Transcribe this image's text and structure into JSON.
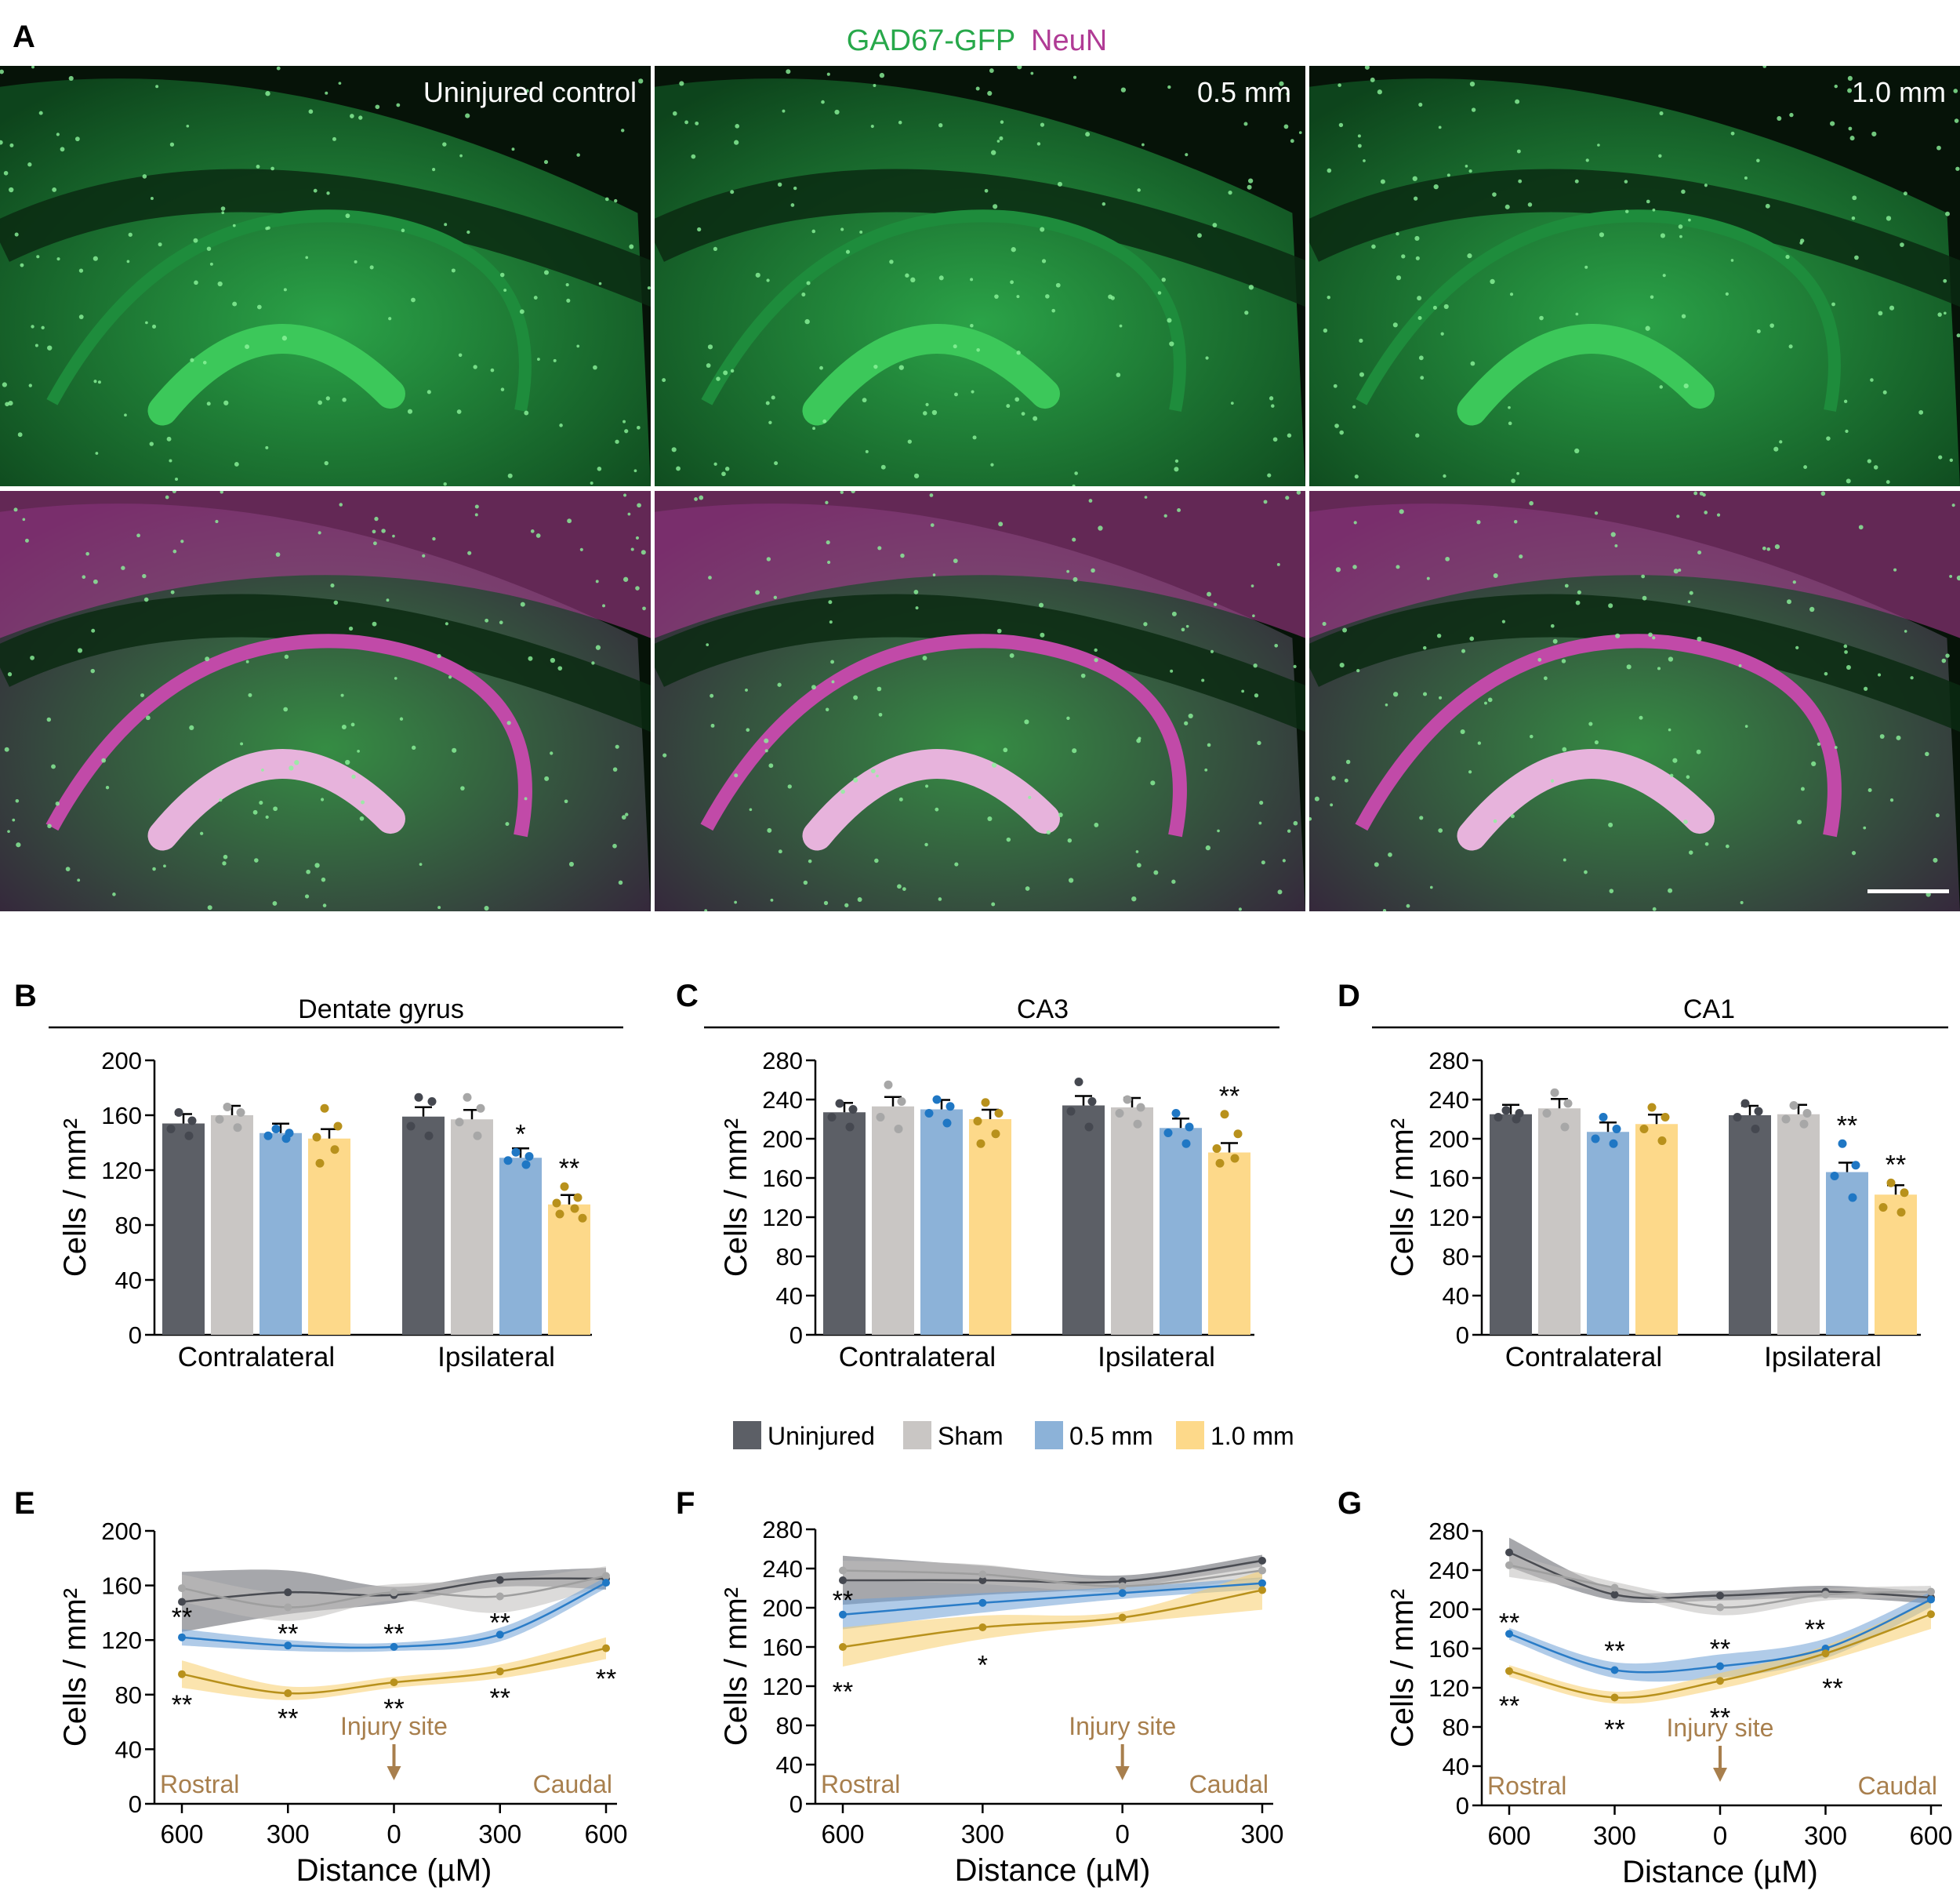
{
  "colors": {
    "uninjured": "#5c5f66",
    "sham": "#c9c6c4",
    "half": "#8cb2d8",
    "one": "#fdd98a",
    "uninjured_dot": "#454850",
    "sham_dot": "#a7a7a7",
    "half_dot": "#1f77c4",
    "one_dot": "#b8911c",
    "gfp": "#27a84a",
    "neun": "#b03b95",
    "injury": "#a87f4d"
  },
  "panel_a": {
    "label": "A",
    "title_gfp": "GAD67-GFP",
    "title_neun": "NeuN",
    "captions": [
      "Uninjured control",
      "0.5 mm",
      "1.0 mm"
    ]
  },
  "legend": {
    "items": [
      "Uninjured",
      "Sham",
      "0.5 mm",
      "1.0 mm"
    ]
  },
  "chart_data": [
    {
      "panel": "B",
      "type": "bar",
      "title": "Dentate gyrus",
      "ylabel": "Cells / mm²",
      "ylim": [
        0,
        200
      ],
      "yticks": [
        0,
        40,
        80,
        120,
        160,
        200
      ],
      "groups": [
        "Contralateral",
        "Ipsilateral"
      ],
      "series": [
        {
          "name": "Uninjured",
          "values": [
            154,
            159
          ]
        },
        {
          "name": "Sham",
          "values": [
            160,
            157
          ]
        },
        {
          "name": "0.5 mm",
          "values": [
            147,
            129
          ]
        },
        {
          "name": "1.0 mm",
          "values": [
            143,
            95
          ]
        }
      ],
      "points": [
        [
          [
            162,
            156,
            150,
            145
          ],
          [
            173,
            170,
            152,
            145
          ]
        ],
        [
          [
            166,
            162,
            157,
            151
          ],
          [
            173,
            165,
            155,
            145
          ]
        ],
        [
          [
            150,
            147,
            145,
            143
          ],
          [
            133,
            130,
            127,
            124
          ]
        ],
        [
          [
            165,
            152,
            144,
            135,
            125
          ],
          [
            108,
            100,
            96,
            92,
            88,
            85
          ]
        ]
      ],
      "annotations": [
        {
          "group": 1,
          "series": 2,
          "text": "*"
        },
        {
          "group": 1,
          "series": 3,
          "text": "**"
        }
      ]
    },
    {
      "panel": "C",
      "type": "bar",
      "title": "CA3",
      "ylabel": "Cells / mm²",
      "ylim": [
        0,
        280
      ],
      "yticks": [
        0,
        40,
        80,
        120,
        160,
        200,
        240,
        280
      ],
      "groups": [
        "Contralateral",
        "Ipsilateral"
      ],
      "series": [
        {
          "name": "Uninjured",
          "values": [
            227,
            234
          ]
        },
        {
          "name": "Sham",
          "values": [
            233,
            232
          ]
        },
        {
          "name": "0.5 mm",
          "values": [
            230,
            211
          ]
        },
        {
          "name": "1.0 mm",
          "values": [
            220,
            186
          ]
        }
      ],
      "points": [
        [
          [
            236,
            230,
            222,
            212
          ],
          [
            258,
            238,
            228,
            212
          ]
        ],
        [
          [
            255,
            238,
            222,
            210
          ],
          [
            240,
            232,
            226,
            215
          ]
        ],
        [
          [
            240,
            233,
            226,
            216
          ],
          [
            226,
            212,
            206,
            195
          ]
        ],
        [
          [
            237,
            226,
            218,
            205,
            195
          ],
          [
            225,
            205,
            190,
            180,
            175
          ]
        ]
      ],
      "annotations": [
        {
          "group": 1,
          "series": 3,
          "text": "**"
        }
      ]
    },
    {
      "panel": "D",
      "type": "bar",
      "title": "CA1",
      "ylabel": "Cells / mm²",
      "ylim": [
        0,
        280
      ],
      "yticks": [
        0,
        40,
        80,
        120,
        160,
        200,
        240,
        280
      ],
      "groups": [
        "Contralateral",
        "Ipsilateral"
      ],
      "series": [
        {
          "name": "Uninjured",
          "values": [
            225,
            224
          ]
        },
        {
          "name": "Sham",
          "values": [
            231,
            225
          ]
        },
        {
          "name": "0.5 mm",
          "values": [
            207,
            166
          ]
        },
        {
          "name": "1.0 mm",
          "values": [
            215,
            143
          ]
        }
      ],
      "points": [
        [
          [
            229,
            226,
            222,
            220
          ],
          [
            236,
            228,
            222,
            210
          ]
        ],
        [
          [
            247,
            236,
            226,
            212
          ],
          [
            234,
            226,
            220,
            215
          ]
        ],
        [
          [
            222,
            210,
            200,
            195
          ],
          [
            195,
            173,
            162,
            140
          ]
        ],
        [
          [
            232,
            222,
            210,
            198
          ],
          [
            155,
            145,
            130,
            125
          ]
        ]
      ],
      "annotations": [
        {
          "group": 1,
          "series": 2,
          "text": "**"
        },
        {
          "group": 1,
          "series": 3,
          "text": "**"
        }
      ]
    },
    {
      "panel": "E",
      "type": "line",
      "ylabel": "Cells / mm²",
      "xlabel": "Distance (µM)",
      "ylim": [
        0,
        200
      ],
      "yticks": [
        0,
        40,
        80,
        120,
        160,
        200
      ],
      "xticks": [
        "600",
        "300",
        "0",
        "300",
        "600"
      ],
      "xpos": [
        -600,
        -300,
        0,
        300,
        600
      ],
      "left_label": "Rostral",
      "right_label": "Caudal",
      "injury_label": "Injury site",
      "series": [
        {
          "name": "Uninjured",
          "values": [
            148,
            155,
            153,
            164,
            165
          ],
          "band": [
            22,
            16,
            6,
            5,
            8
          ]
        },
        {
          "name": "Sham",
          "values": [
            158,
            144,
            155,
            152,
            167
          ],
          "band": [
            10,
            10,
            6,
            12,
            7
          ]
        },
        {
          "name": "0.5 mm",
          "values": [
            122,
            116,
            115,
            124,
            162
          ],
          "band": [
            6,
            4,
            3,
            5,
            4
          ]
        },
        {
          "name": "1.0 mm",
          "values": [
            95,
            81,
            89,
            97,
            114
          ],
          "band": [
            10,
            5,
            4,
            5,
            8
          ]
        }
      ],
      "annotations": [
        {
          "x": -600,
          "y": 137,
          "text": "**"
        },
        {
          "x": -300,
          "y": 125,
          "text": "**"
        },
        {
          "x": 0,
          "y": 125,
          "text": "**"
        },
        {
          "x": 300,
          "y": 133,
          "text": "**"
        },
        {
          "x": -600,
          "y": 73,
          "text": "**"
        },
        {
          "x": -300,
          "y": 63,
          "text": "**"
        },
        {
          "x": 0,
          "y": 70,
          "text": "**"
        },
        {
          "x": 300,
          "y": 78,
          "text": "**"
        },
        {
          "x": 600,
          "y": 92,
          "text": "**"
        }
      ]
    },
    {
      "panel": "F",
      "type": "line",
      "ylabel": "Cells / mm²",
      "xlabel": "Distance (µM)",
      "ylim": [
        0,
        280
      ],
      "yticks": [
        0,
        40,
        80,
        120,
        160,
        200,
        240,
        280
      ],
      "xticks": [
        "600",
        "300",
        "0",
        "300"
      ],
      "xpos": [
        -600,
        -300,
        0,
        300
      ],
      "left_label": "Rostral",
      "right_label": "Caudal",
      "injury_label": "Injury site",
      "series": [
        {
          "name": "Uninjured",
          "values": [
            228,
            228,
            227,
            248
          ],
          "band": [
            25,
            15,
            6,
            6
          ]
        },
        {
          "name": "Sham",
          "values": [
            238,
            234,
            222,
            238
          ],
          "band": [
            10,
            10,
            6,
            8
          ]
        },
        {
          "name": "0.5 mm",
          "values": [
            193,
            205,
            215,
            225
          ],
          "band": [
            15,
            10,
            6,
            6
          ]
        },
        {
          "name": "1.0 mm",
          "values": [
            160,
            180,
            190,
            218
          ],
          "band": [
            20,
            12,
            6,
            20
          ]
        }
      ],
      "annotations": [
        {
          "x": -600,
          "y": 208,
          "text": "**"
        },
        {
          "x": -600,
          "y": 115,
          "text": "**"
        },
        {
          "x": -300,
          "y": 142,
          "text": "*"
        }
      ]
    },
    {
      "panel": "G",
      "type": "line",
      "ylabel": "Cells / mm²",
      "xlabel": "Distance (µM)",
      "ylim": [
        0,
        280
      ],
      "yticks": [
        0,
        40,
        80,
        120,
        160,
        200,
        240,
        280
      ],
      "xticks": [
        "600",
        "300",
        "0",
        "300",
        "600"
      ],
      "xpos": [
        -600,
        -300,
        0,
        300,
        600
      ],
      "left_label": "Rostral",
      "right_label": "Caudal",
      "injury_label": "Injury site",
      "series": [
        {
          "name": "Uninjured",
          "values": [
            258,
            215,
            214,
            218,
            212
          ],
          "band": [
            15,
            6,
            5,
            6,
            6
          ]
        },
        {
          "name": "Sham",
          "values": [
            245,
            222,
            202,
            215,
            218
          ],
          "band": [
            12,
            6,
            8,
            6,
            6
          ]
        },
        {
          "name": "0.5 mm",
          "values": [
            175,
            138,
            142,
            160,
            210
          ],
          "band": [
            6,
            8,
            12,
            10,
            8
          ]
        },
        {
          "name": "1.0 mm",
          "values": [
            137,
            110,
            127,
            155,
            195
          ],
          "band": [
            6,
            6,
            8,
            8,
            15
          ]
        }
      ],
      "annotations": [
        {
          "x": -600,
          "y": 187,
          "text": "**"
        },
        {
          "x": -300,
          "y": 158,
          "text": "**"
        },
        {
          "x": 0,
          "y": 160,
          "text": "**"
        },
        {
          "x": 270,
          "y": 180,
          "text": "**"
        },
        {
          "x": -600,
          "y": 102,
          "text": "**"
        },
        {
          "x": -300,
          "y": 78,
          "text": "**"
        },
        {
          "x": 0,
          "y": 90,
          "text": "**"
        },
        {
          "x": 320,
          "y": 120,
          "text": "**"
        }
      ]
    }
  ]
}
